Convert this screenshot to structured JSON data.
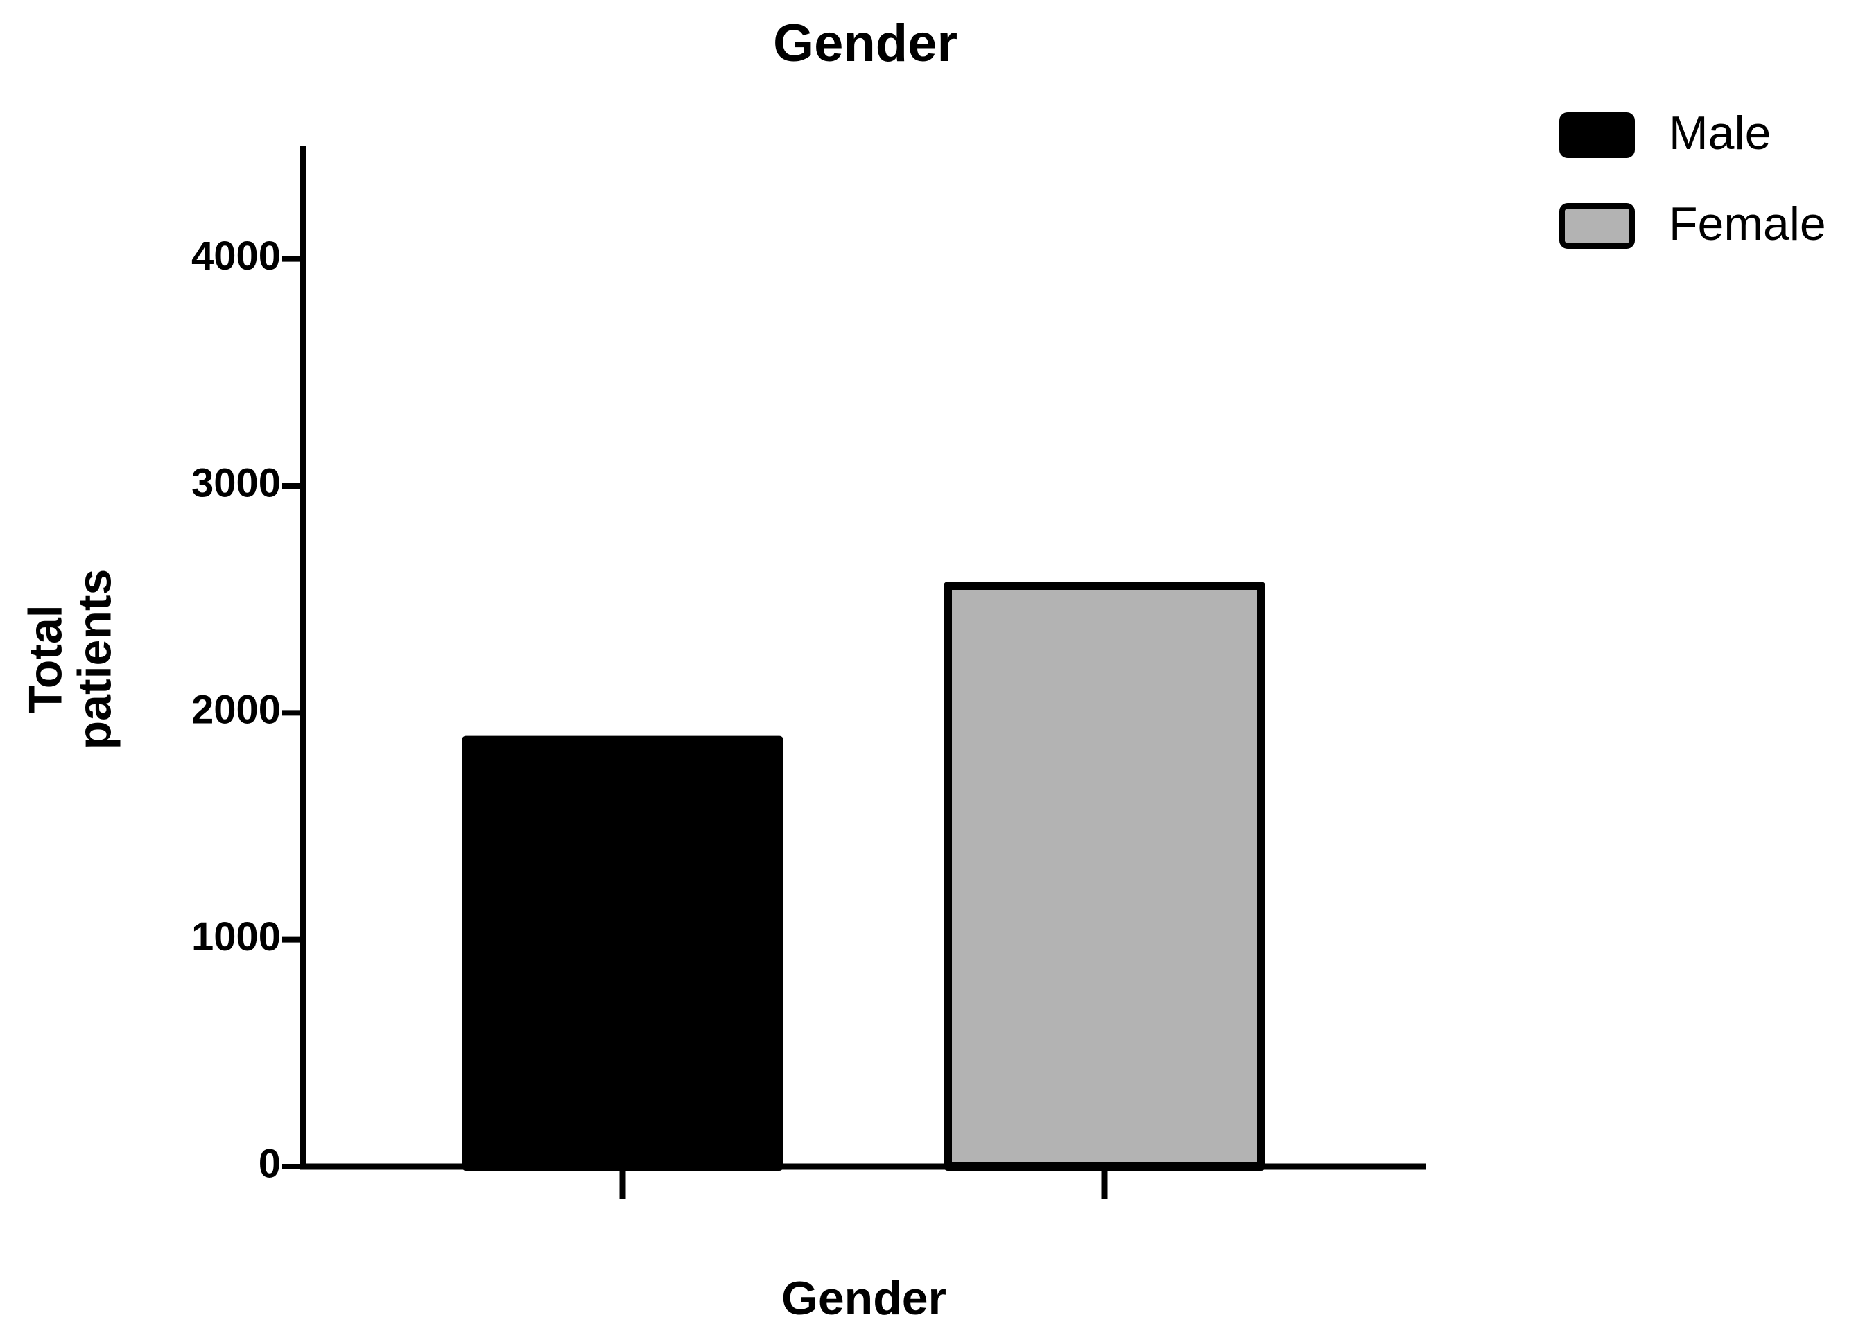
{
  "chart_data": {
    "type": "bar",
    "title": "Gender",
    "x_label": "Gender",
    "y_label": "Total patients",
    "categories": [
      null,
      null
    ],
    "series": [
      {
        "name": "Male",
        "color": "#000000",
        "values": [
          1880,
          null
        ]
      },
      {
        "name": "Female",
        "color": "#b3b3b3",
        "values": [
          null,
          2560
        ]
      }
    ],
    "ylim": [
      0,
      4500
    ],
    "yticks": [
      0,
      1000,
      2000,
      3000,
      4000
    ],
    "grid": false,
    "legend": "top-right"
  }
}
